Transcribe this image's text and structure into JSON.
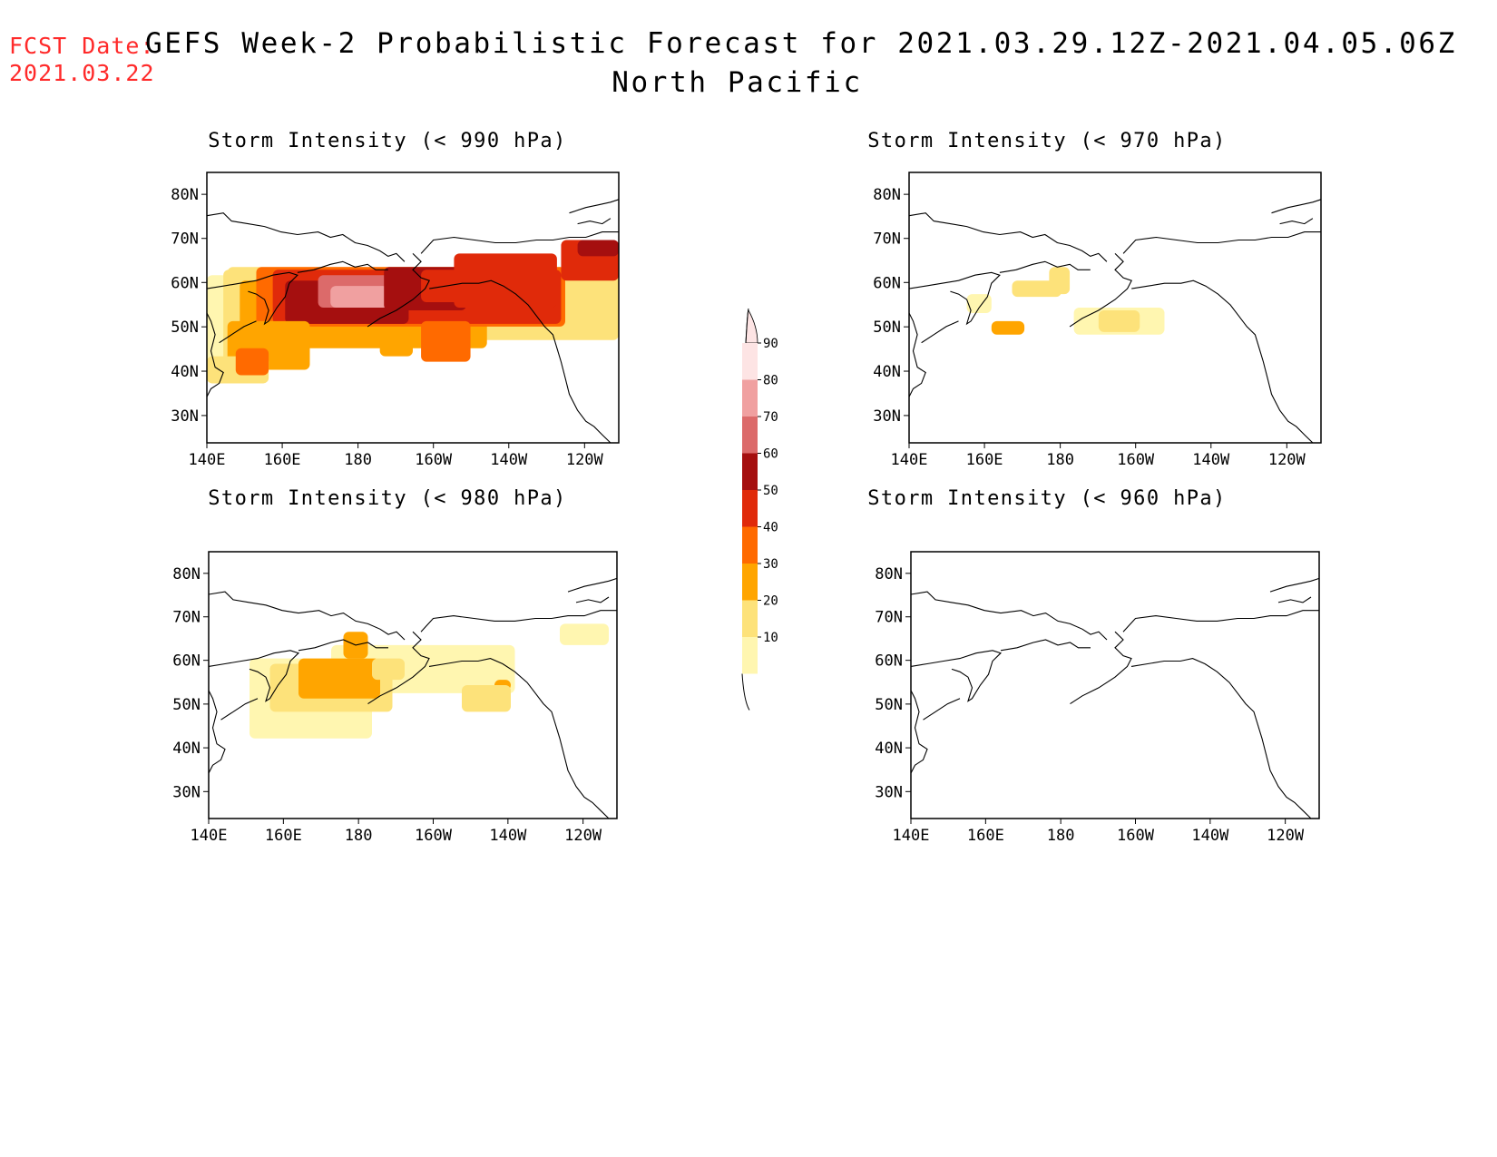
{
  "header": {
    "fcst_label": "FCST Date:",
    "fcst_date": "2021.03.22",
    "title": "GEFS Week-2 Probabilistic Forecast for 2021.03.29.12Z-2021.04.05.06Z",
    "subtitle": "North Pacific"
  },
  "axes": {
    "lat_labels": [
      "80N",
      "70N",
      "60N",
      "50N",
      "40N",
      "30N"
    ],
    "lon_labels": [
      "140E",
      "160E",
      "180",
      "160W",
      "140W",
      "120W"
    ]
  },
  "panels": [
    {
      "title": "Storm Intensity (< 990 hPa)",
      "threshold": "990 hPa",
      "level": "high"
    },
    {
      "title": "Storm Intensity (< 970 hPa)",
      "threshold": "970 hPa",
      "level": "low"
    },
    {
      "title": "Storm Intensity (< 980 hPa)",
      "threshold": "980 hPa",
      "level": "medium"
    },
    {
      "title": "Storm Intensity (< 960 hPa)",
      "threshold": "960 hPa",
      "level": "none"
    }
  ],
  "colorbar": {
    "labels": [
      "90",
      "80",
      "70",
      "60",
      "50",
      "40",
      "30",
      "20",
      "10"
    ],
    "colors": [
      "#fde4e4",
      "#f0a0a0",
      "#dc6a6a",
      "#a50f0f",
      "#e02a0a",
      "#ff6a00",
      "#ffa500",
      "#fde27a",
      "#fff6b0"
    ]
  }
}
